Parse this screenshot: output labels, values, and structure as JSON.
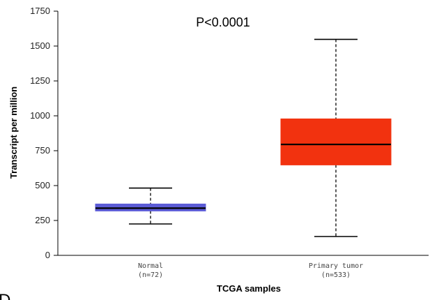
{
  "chart_data": {
    "type": "box",
    "annotation": "P<0.0001",
    "xlabel": "TCGA samples",
    "ylabel": "Transcript per million",
    "ylim": [
      0,
      1750
    ],
    "yticks": [
      0,
      250,
      500,
      750,
      1000,
      1250,
      1500,
      1750
    ],
    "categories": [
      {
        "name": "Normal",
        "n_label": "(n=72)",
        "color": "#5b5bd6",
        "min": 225,
        "q1": 318,
        "median": 338,
        "q3": 368,
        "max": 482
      },
      {
        "name": "Primary tumor",
        "n_label": "(n=533)",
        "color": "#f2320f",
        "min": 135,
        "q1": 648,
        "median": 795,
        "q3": 978,
        "max": 1548
      }
    ]
  },
  "panel_letter": "D"
}
